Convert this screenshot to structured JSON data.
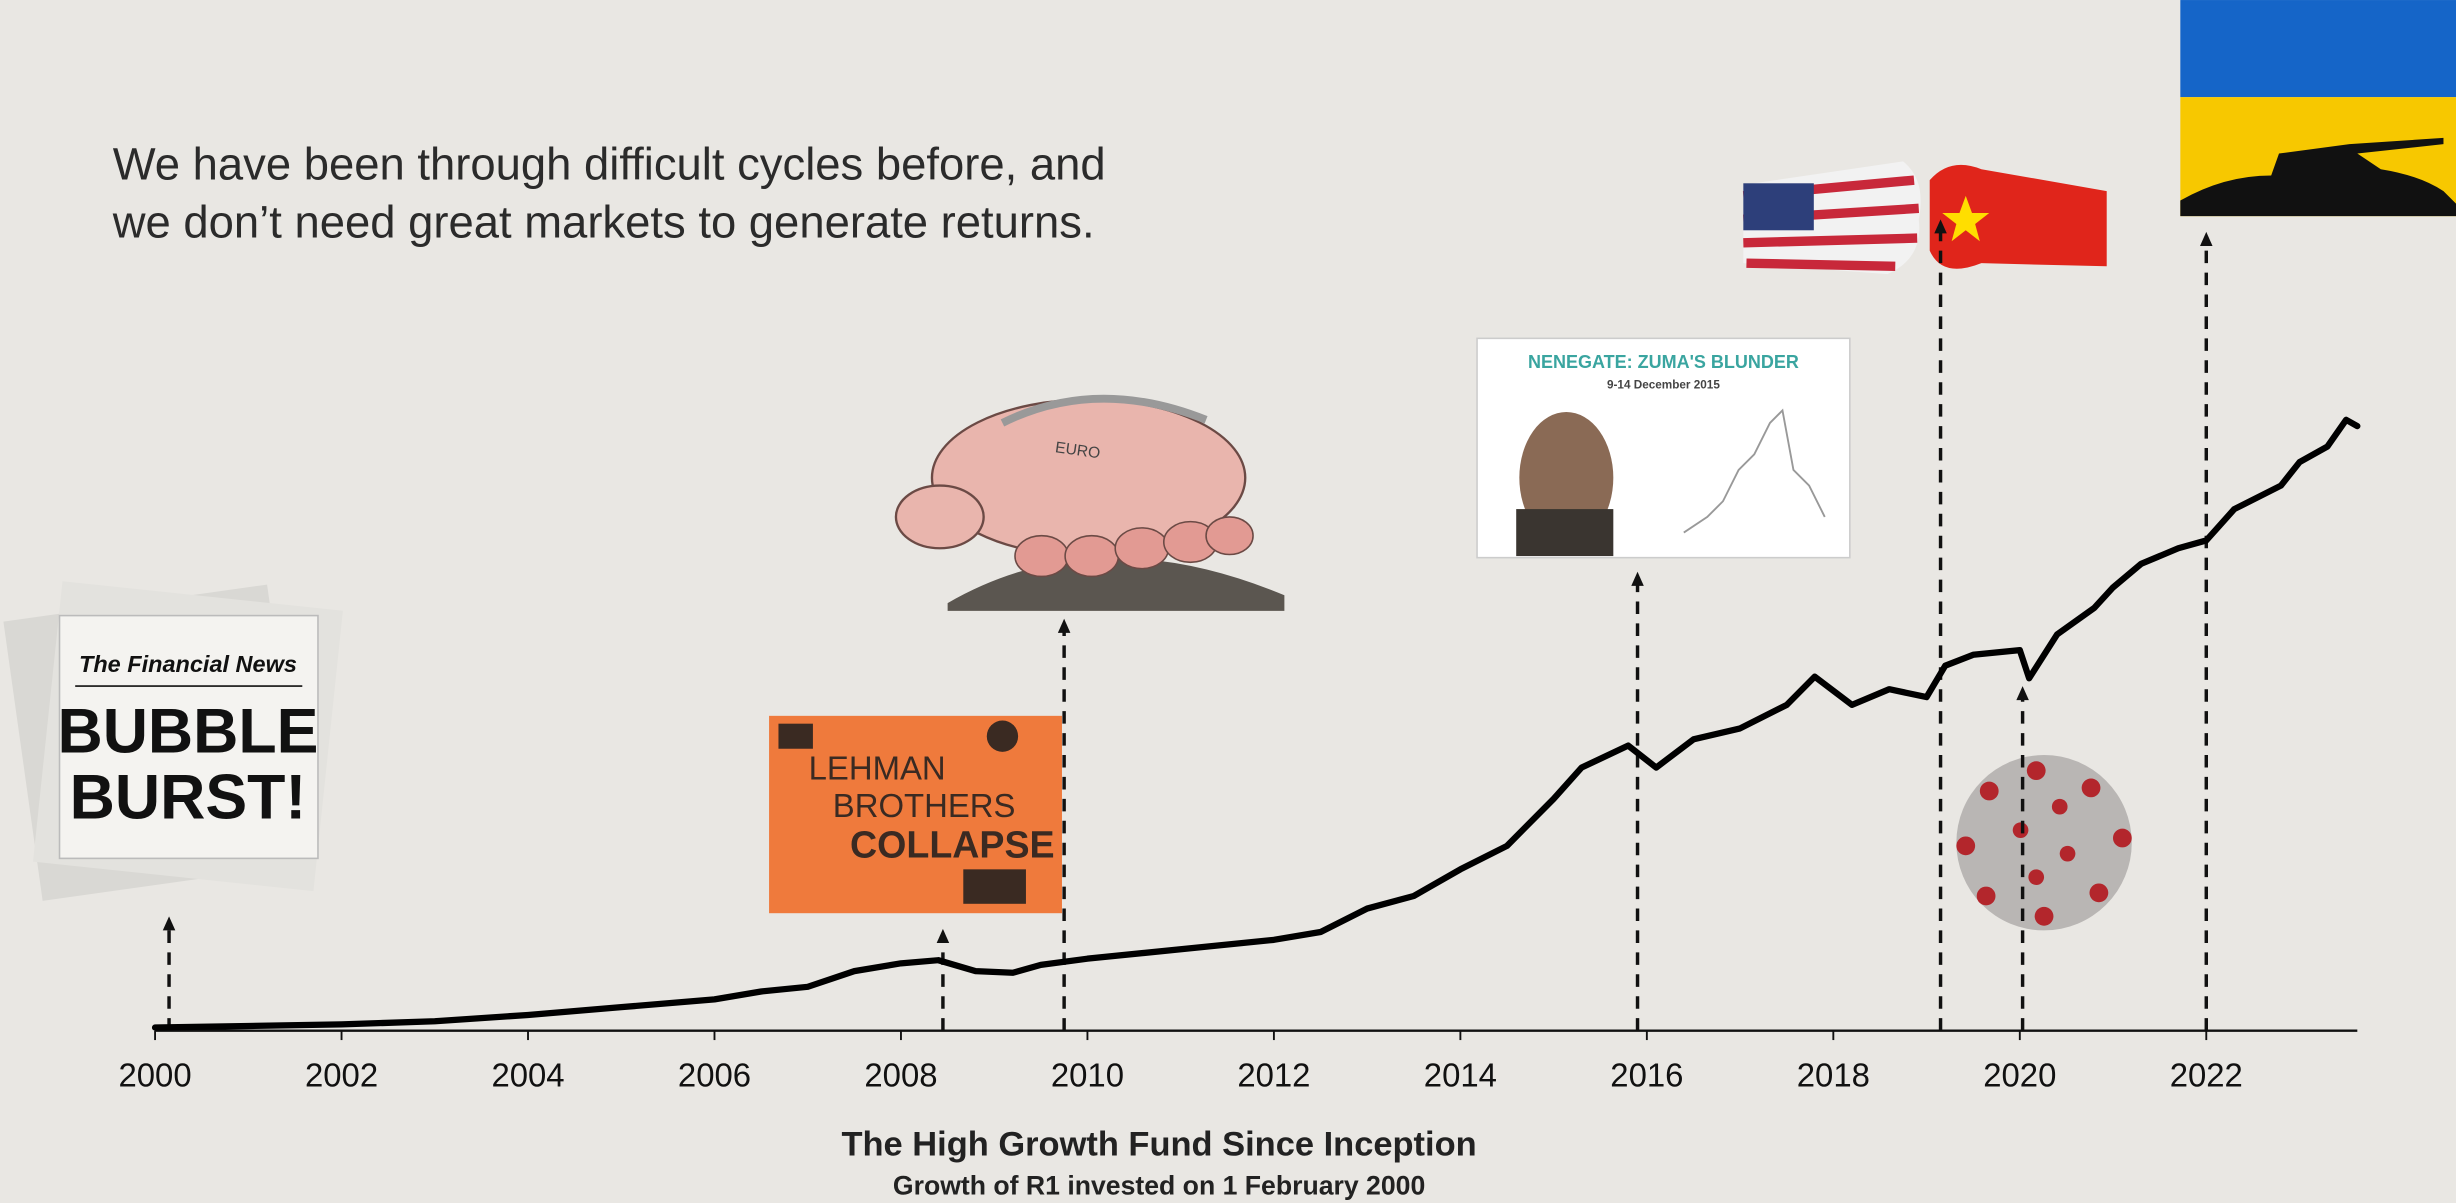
{
  "chart_data": {
    "type": "line",
    "intro": [
      "We have been through difficult cycles before, and",
      "we don’t need  great markets to generate returns."
    ],
    "title": "The High Growth Fund Since Inception",
    "subtitle": "Growth of R1 invested on 1 February 2000",
    "x": [
      2000,
      2001,
      2002,
      2003,
      2004,
      2005,
      2006,
      2006.5,
      2007,
      2007.5,
      2008,
      2008.4,
      2008.8,
      2009.2,
      2009.5,
      2010,
      2011,
      2012,
      2012.5,
      2013,
      2013.5,
      2014,
      2014.5,
      2015,
      2015.3,
      2015.8,
      2016.1,
      2016.5,
      2017,
      2017.5,
      2017.8,
      2018.2,
      2018.6,
      2019,
      2019.2,
      2019.5,
      2020,
      2020.1,
      2020.4,
      2020.8,
      2021,
      2021.3,
      2021.7,
      2022,
      2022.3,
      2022.8,
      2023,
      2023.3,
      2023.5,
      2023.62
    ],
    "values": [
      0.35,
      0.52,
      0.7,
      1.05,
      1.75,
      2.62,
      3.49,
      4.37,
      4.89,
      6.64,
      7.51,
      7.86,
      6.64,
      6.46,
      7.34,
      8.03,
      9.08,
      10.13,
      11.0,
      13.62,
      15.02,
      17.99,
      20.61,
      25.85,
      29.34,
      31.79,
      29.34,
      32.49,
      33.71,
      36.33,
      39.48,
      36.33,
      38.08,
      37.2,
      40.7,
      41.92,
      42.44,
      39.3,
      44.19,
      47.16,
      49.43,
      52.05,
      53.8,
      54.67,
      58.16,
      60.78,
      63.4,
      65.15,
      68.12,
      67.42
    ],
    "color": "#000000",
    "xlim": [
      2000,
      2023.62
    ],
    "ylim": [
      0,
      80
    ],
    "xticks": [
      2000,
      2002,
      2004,
      2006,
      2008,
      2010,
      2012,
      2014,
      2016,
      2018,
      2020,
      2022
    ],
    "events": [
      {
        "x": 2000.15,
        "texts": [
          "The Financial News",
          "BUBBLE",
          "BURST!"
        ]
      },
      {
        "x": 2008.45,
        "texts": [
          "LEHMAN",
          "BROTHERS",
          "COLLAPSE"
        ]
      },
      {
        "x": 2009.75,
        "texts": [
          "EURO"
        ]
      },
      {
        "x": 2015.9,
        "texts": [
          "NENEGATE: ZUMA'S BLUNDER",
          "9-14 December 2015"
        ]
      },
      {
        "x": 2019.15
      },
      {
        "x": 2020.03
      },
      {
        "x": 2022.0
      }
    ]
  }
}
